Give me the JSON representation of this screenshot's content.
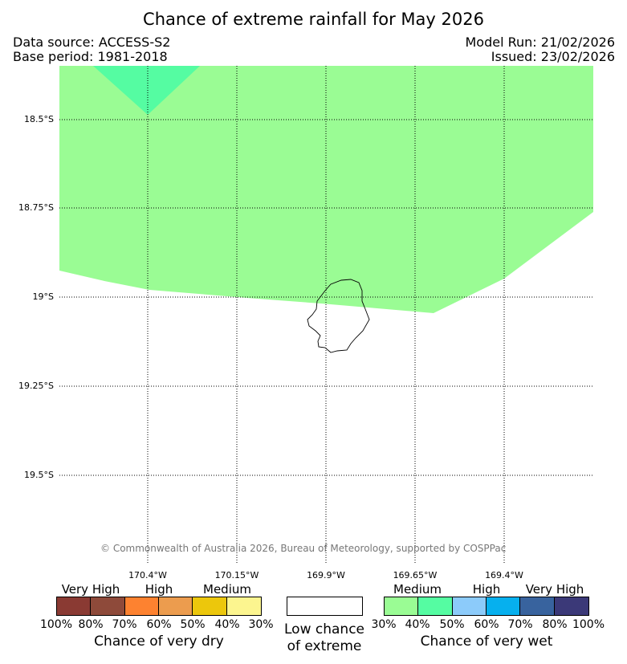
{
  "title": "Chance of extreme rainfall for May 2026",
  "header": {
    "data_source": "Data source: ACCESS-S2",
    "base_period": "Base period: 1981-2018",
    "model_run": "Model Run: 21/02/2026",
    "issued": "Issued: 23/02/2026"
  },
  "map": {
    "lat_labels": [
      "18.5°S",
      "18.75°S",
      "19°S",
      "19.25°S",
      "19.5°S"
    ],
    "lon_labels": [
      "170.4°W",
      "170.15°W",
      "169.9°W",
      "169.65°W",
      "169.4°W"
    ],
    "region_colors": {
      "medium_wet": "#9afc94",
      "high_wet": "#55fca2"
    },
    "copyright": "© Commonwealth of Australia 2026, Bureau of Meteorology, supported by COSPPac"
  },
  "legend": {
    "dry": {
      "levels": [
        "Very High",
        "High",
        "Medium"
      ],
      "colors": [
        "#8a3a33",
        "#8e4a3a",
        "#fd8230",
        "#ec9c4e",
        "#ecc70c",
        "#fcf58f"
      ],
      "percents": [
        "100%",
        "80%",
        "70%",
        "60%",
        "50%",
        "40%",
        "30%"
      ],
      "caption": "Chance of very dry"
    },
    "neutral": {
      "color": "#ffffff",
      "caption_line1": "Low chance",
      "caption_line2": "of extreme"
    },
    "wet": {
      "levels": [
        "Medium",
        "High",
        "Very High"
      ],
      "colors": [
        "#9afc94",
        "#55fca2",
        "#8ccbfa",
        "#06b0ee",
        "#38639e",
        "#3b3978"
      ],
      "percents": [
        "30%",
        "40%",
        "50%",
        "60%",
        "70%",
        "80%",
        "100%"
      ],
      "caption": "Chance of very wet"
    }
  }
}
